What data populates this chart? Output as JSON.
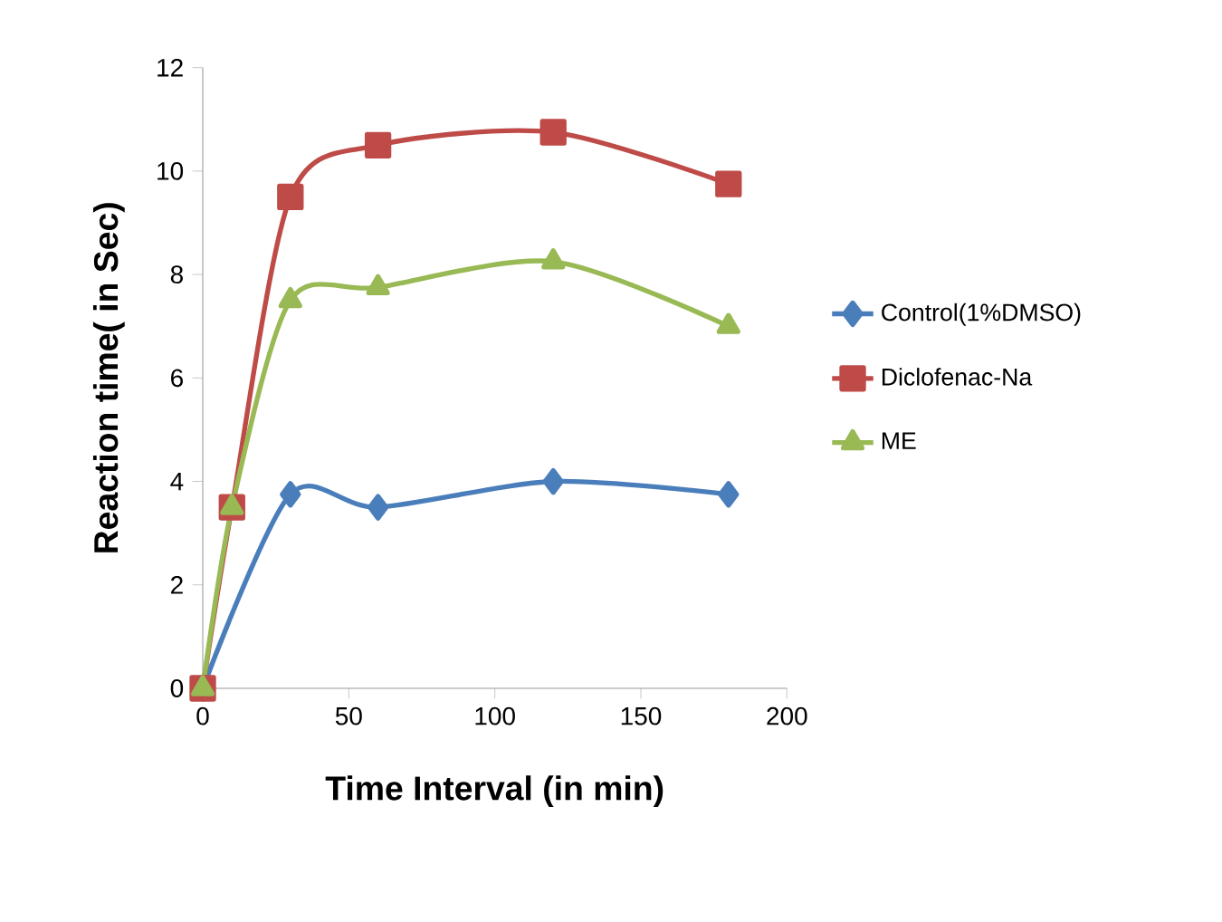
{
  "chart_data": {
    "type": "line",
    "xlabel": "Time Interval (in min)",
    "ylabel": "Reaction time( in Sec)",
    "x": [
      0,
      10,
      30,
      60,
      120,
      180
    ],
    "series": [
      {
        "name": "Control(1%DMSO)",
        "color": "#4a7ebb",
        "marker": "diamond",
        "values": [
          0,
          null,
          3.75,
          3.5,
          4,
          3.75
        ]
      },
      {
        "name": "Diclofenac-Na",
        "color": "#be4b48",
        "marker": "square",
        "values": [
          0,
          3.5,
          9.5,
          10.5,
          10.75,
          9.75
        ]
      },
      {
        "name": "ME",
        "color": "#98b954",
        "marker": "triangle",
        "values": [
          0,
          3.5,
          7.5,
          7.75,
          8.25,
          7
        ]
      }
    ],
    "xlim": [
      0,
      200
    ],
    "xticks": [
      0,
      50,
      100,
      150,
      200
    ],
    "ylim": [
      0,
      12
    ],
    "yticks": [
      0,
      2,
      4,
      6,
      8,
      10,
      12
    ],
    "grid": false,
    "legend": "right",
    "line_style": "solid"
  }
}
